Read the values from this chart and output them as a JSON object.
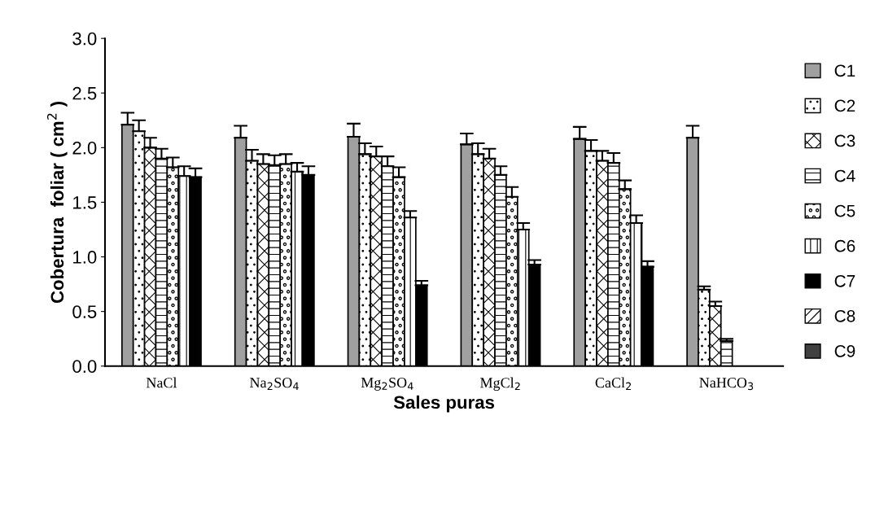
{
  "chart_data": {
    "type": "bar",
    "xlabel": "Sales puras",
    "ylabel": "Cobertura  foliar ( cm$^{2}$ )",
    "categories": [
      "NaCl",
      "Na$_{2}$SO$_{4}$",
      "Mg$_{2}$SO$_{4}$",
      "MgCl$_{2}$",
      "CaCl$_{2}$",
      "NaHCO$_{3}$"
    ],
    "ylim": [
      0,
      3
    ],
    "yticks": [
      {
        "value": 0,
        "label": "0.0"
      },
      {
        "value": 0.5,
        "label": "0.5"
      },
      {
        "value": 1,
        "label": "1.0"
      },
      {
        "value": 1.5,
        "label": "1.5"
      },
      {
        "value": 2,
        "label": "2.0"
      },
      {
        "value": 2.5,
        "label": "2.5"
      },
      {
        "value": 3,
        "label": "3.0"
      }
    ],
    "grid": false,
    "legend": "right",
    "series": [
      {
        "name": "C1",
        "color": "#a0a0a0",
        "values": [
          2.21,
          2.09,
          2.1,
          2.03,
          2.08,
          2.09
        ],
        "errors": [
          [
            2.21,
            2.32
          ],
          [
            2.09,
            2.2
          ],
          [
            2.1,
            2.22
          ],
          [
            2.03,
            2.13
          ],
          [
            2.08,
            2.19
          ],
          [
            2.09,
            2.2
          ]
        ]
      },
      {
        "name": "C2",
        "color": "#000000",
        "values": [
          2.15,
          1.88,
          1.94,
          1.94,
          1.97,
          0.7
        ],
        "errors": [
          [
            2.15,
            2.25
          ],
          [
            1.88,
            1.98
          ],
          [
            1.94,
            2.04
          ],
          [
            1.94,
            2.04
          ],
          [
            1.97,
            2.07
          ],
          [
            0.7,
            0.73
          ]
        ]
      },
      {
        "name": "C3",
        "color": "#000000",
        "values": [
          2.0,
          1.85,
          1.92,
          1.9,
          1.88,
          0.55
        ],
        "errors": [
          [
            2.0,
            2.09
          ],
          [
            1.85,
            1.94
          ],
          [
            1.92,
            2.01
          ],
          [
            1.9,
            1.99
          ],
          [
            1.88,
            1.97
          ],
          [
            0.55,
            0.59
          ]
        ]
      },
      {
        "name": "C4",
        "color": "#000000",
        "values": [
          1.9,
          1.84,
          1.83,
          1.75,
          1.86,
          0.23
        ],
        "errors": [
          [
            1.9,
            1.99
          ],
          [
            1.84,
            1.93
          ],
          [
            1.83,
            1.92
          ],
          [
            1.75,
            1.83
          ],
          [
            1.86,
            1.95
          ],
          [
            0.23,
            0.25
          ]
        ]
      },
      {
        "name": "C5",
        "color": "#000000",
        "values": [
          1.82,
          1.85,
          1.73,
          1.55,
          1.62,
          0
        ],
        "errors": [
          [
            1.82,
            1.91
          ],
          [
            1.85,
            1.94
          ],
          [
            1.73,
            1.82
          ],
          [
            1.55,
            1.64
          ],
          [
            1.62,
            1.7
          ],
          null
        ]
      },
      {
        "name": "C6",
        "color": "#000000",
        "values": [
          1.74,
          1.78,
          1.36,
          1.25,
          1.31,
          0
        ],
        "errors": [
          [
            1.74,
            1.83
          ],
          [
            1.78,
            1.86
          ],
          [
            1.36,
            1.42
          ],
          [
            1.25,
            1.31
          ],
          [
            1.31,
            1.38
          ],
          null
        ]
      },
      {
        "name": "C7",
        "color": "#000000",
        "values": [
          1.73,
          1.75,
          0.74,
          0.93,
          0.91,
          0
        ],
        "errors": [
          [
            1.73,
            1.81
          ],
          [
            1.75,
            1.83
          ],
          [
            0.74,
            0.78
          ],
          [
            0.93,
            0.97
          ],
          [
            0.91,
            0.96
          ],
          null
        ]
      },
      {
        "name": "C8",
        "color": "#000000",
        "values": [
          null,
          null,
          null,
          null,
          null,
          null
        ]
      },
      {
        "name": "C9",
        "color": "#404040",
        "values": [
          null,
          null,
          null,
          null,
          null,
          null
        ]
      }
    ]
  }
}
